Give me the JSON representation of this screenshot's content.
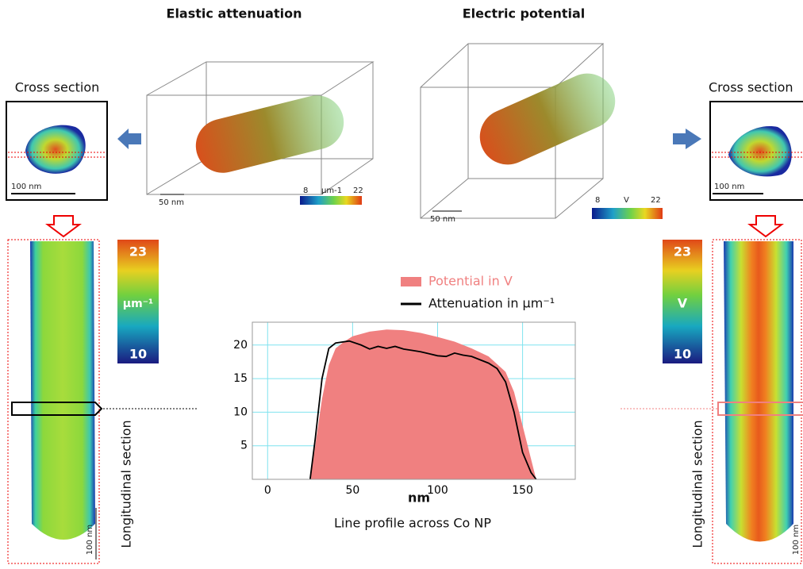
{
  "titles": {
    "left": "Elastic attenuation",
    "right": "Electric potential"
  },
  "cross_section": {
    "left": {
      "label": "Cross section",
      "scale": "100 nm"
    },
    "right": {
      "label": "Cross section",
      "scale": "100 nm"
    }
  },
  "volume": {
    "left": {
      "scale": "50 nm",
      "colorbar": [
        "8",
        "µm-1",
        "22"
      ]
    },
    "right": {
      "scale": "50 nm",
      "colorbar": [
        "8",
        "V",
        "22"
      ]
    }
  },
  "longitudinal": {
    "left": {
      "label": "Longitudinal section",
      "scale": "100 nm",
      "colorbar": [
        "23",
        "µm⁻¹",
        "10"
      ]
    },
    "right": {
      "label": "Longitudinal section",
      "scale": "100 nm",
      "colorbar": [
        "23",
        "V",
        "10"
      ]
    }
  },
  "chart_data": {
    "type": "line",
    "x_label": "nm",
    "caption": "Line profile across Co NP",
    "xlim": [
      -9,
      181
    ],
    "ylim": [
      0,
      23.4
    ],
    "xticks": [
      0,
      50,
      100,
      150
    ],
    "yticks": [
      5,
      10,
      15,
      20
    ],
    "grid": true,
    "series": [
      {
        "name": "Potential in V",
        "color": "#f08080",
        "kind": "area",
        "x": [
          25,
          28,
          32,
          36,
          40,
          45,
          50,
          60,
          70,
          80,
          90,
          100,
          110,
          120,
          130,
          140,
          145,
          150,
          155,
          158
        ],
        "values": [
          0,
          5,
          12,
          17,
          19.5,
          20.5,
          21.3,
          22,
          22.3,
          22.2,
          21.8,
          21.2,
          20.5,
          19.5,
          18.3,
          16,
          13,
          8,
          3,
          0
        ]
      },
      {
        "name": "Attenuation in µm⁻¹",
        "color": "#000000",
        "kind": "line",
        "x": [
          25,
          28,
          32,
          36,
          40,
          48,
          55,
          60,
          65,
          70,
          75,
          80,
          85,
          90,
          95,
          100,
          105,
          110,
          115,
          120,
          125,
          130,
          135,
          140,
          145,
          150,
          155,
          158
        ],
        "values": [
          0,
          6,
          15,
          19.5,
          20.3,
          20.6,
          20,
          19.4,
          19.8,
          19.5,
          19.8,
          19.4,
          19.2,
          19,
          18.7,
          18.4,
          18.3,
          18.8,
          18.5,
          18.3,
          17.8,
          17.3,
          16.5,
          14.5,
          10,
          4,
          1,
          0
        ]
      }
    ]
  }
}
